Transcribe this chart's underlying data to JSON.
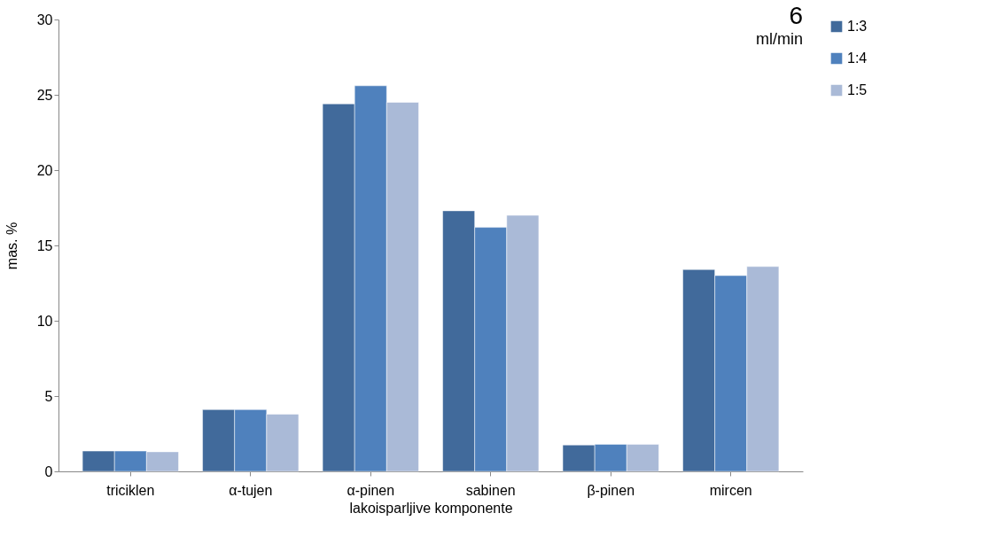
{
  "chart_data": {
    "type": "bar",
    "title": "6",
    "subtitle": "ml/min",
    "xlabel": "lakoisparljive komponente",
    "ylabel": "mas. %",
    "categories": [
      "triciklen",
      "α-tujen",
      "α-pinen",
      "sabinen",
      "β-pinen",
      "mircen"
    ],
    "series": [
      {
        "name": "1:3",
        "color": "#416a9b",
        "values": [
          1.35,
          4.1,
          24.4,
          17.3,
          1.75,
          13.4
        ]
      },
      {
        "name": "1:4",
        "color": "#4f81bd",
        "values": [
          1.35,
          4.1,
          25.6,
          16.2,
          1.8,
          13.0
        ]
      },
      {
        "name": "1:5",
        "color": "#aabad7",
        "values": [
          1.3,
          3.8,
          24.5,
          17.0,
          1.8,
          13.6
        ]
      }
    ],
    "ylim": [
      0,
      30
    ],
    "yticks": [
      0,
      5,
      10,
      15,
      20,
      25,
      30
    ],
    "grid": false,
    "legend": "right"
  }
}
